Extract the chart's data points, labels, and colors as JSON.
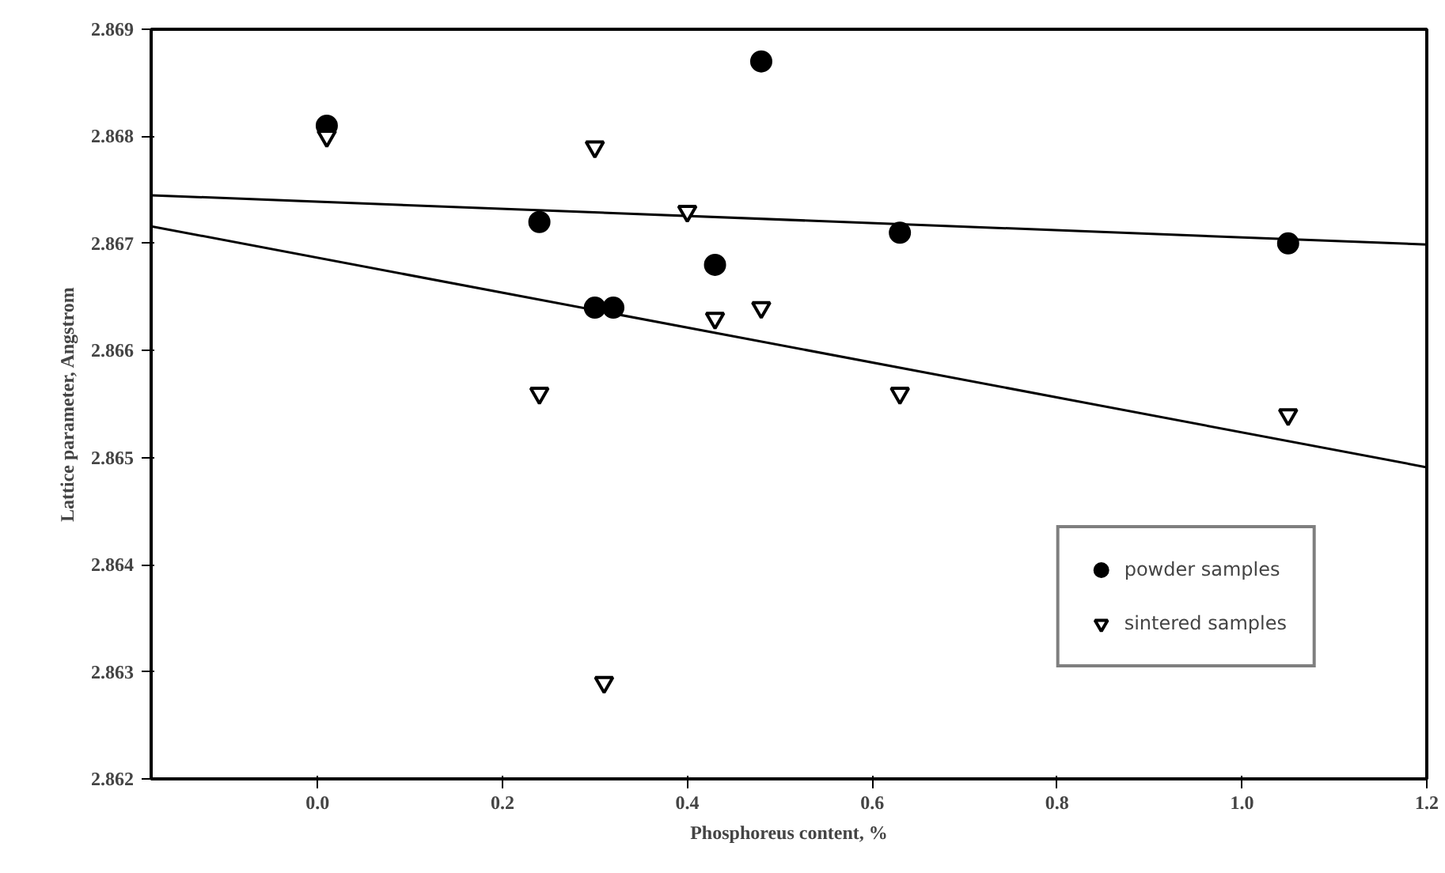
{
  "chart_data": {
    "type": "scatter",
    "xlabel": "Phosphoreus content, %",
    "ylabel": "Lattice parameter, Angstrom",
    "xlim": [
      -0.18,
      1.2
    ],
    "xticks": [
      {
        "value": 0,
        "label": "0.0"
      },
      0.2,
      0.4,
      0.6,
      0.8,
      {
        "value": 1,
        "label": "1.0"
      },
      1.2
    ],
    "ylim": [
      2.862,
      2.869
    ],
    "yticks": [
      2.862,
      2.863,
      2.864,
      2.865,
      2.866,
      2.867,
      2.868,
      2.869
    ],
    "grid": false,
    "legend": "bottom right",
    "series": [
      {
        "name": "powder samples",
        "color": "#000000",
        "marker": "circle",
        "x": [
          0.01,
          0.24,
          0.3,
          0.32,
          0.43,
          0.48,
          0.63,
          1.05
        ],
        "values": [
          2.8681,
          2.8672,
          2.8664,
          2.8664,
          2.8668,
          2.8687,
          2.8671,
          2.867
        ]
      },
      {
        "type": "line",
        "color": "#000000",
        "x": [
          -0.18,
          1.2
        ],
        "values": [
          2.86745,
          2.86699
        ]
      },
      {
        "name": "sintered samples",
        "color": "#000000",
        "marker": "triangle",
        "x": [
          0.01,
          0.24,
          0.3,
          0.31,
          0.4,
          0.43,
          0.48,
          0.63,
          1.05
        ],
        "values": [
          2.868,
          2.8656,
          2.8679,
          2.8629,
          2.8673,
          2.8663,
          2.8664,
          2.8656,
          2.8654
        ]
      },
      {
        "type": "line",
        "color": "#000000",
        "x": [
          -0.18,
          1.2
        ],
        "values": [
          2.86716,
          2.86491
        ]
      }
    ]
  }
}
